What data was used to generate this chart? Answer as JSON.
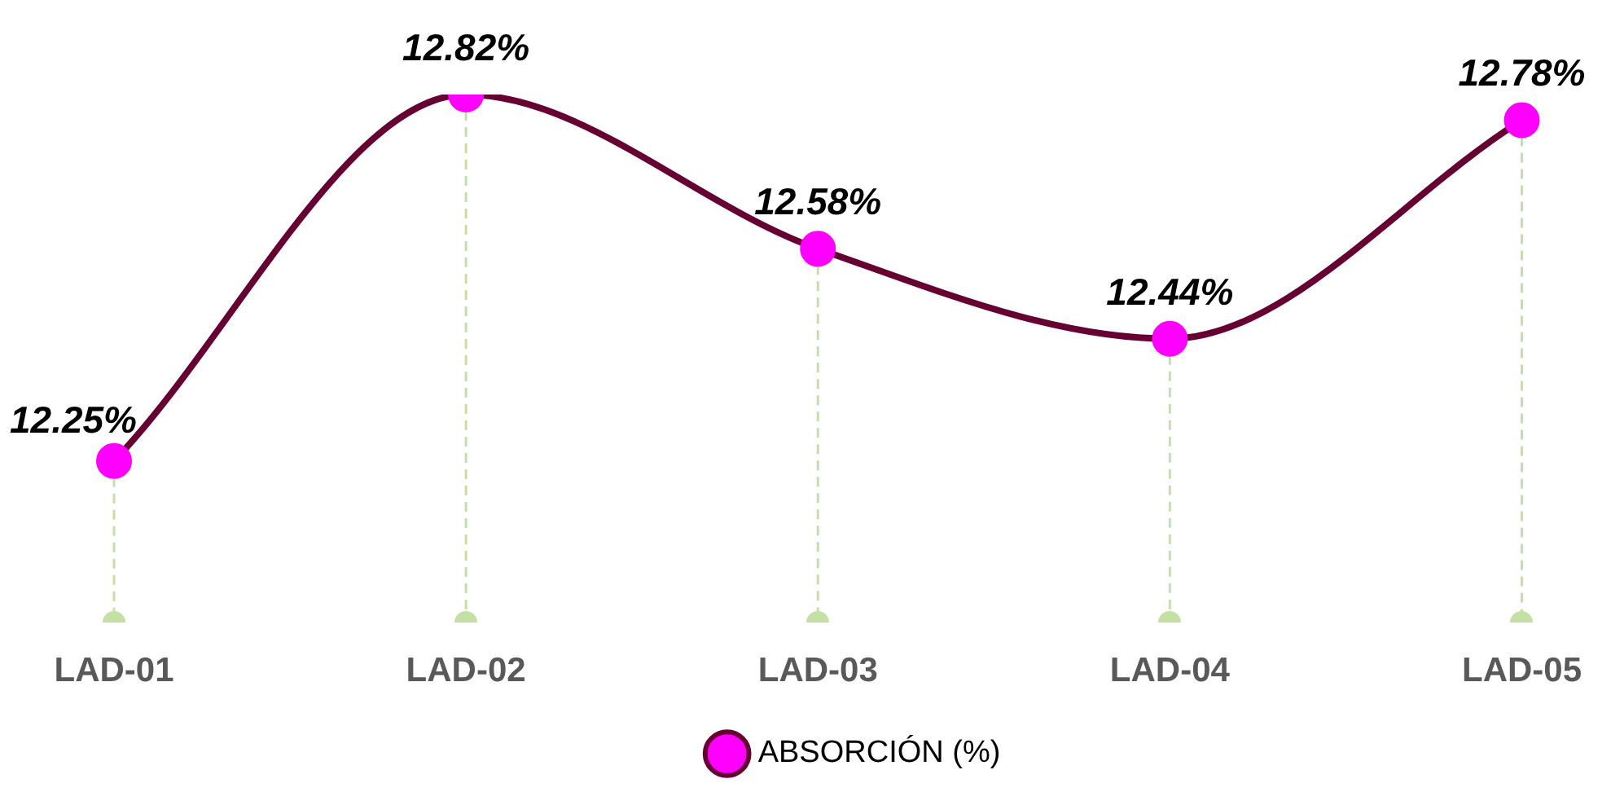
{
  "chart_data": {
    "type": "line",
    "categories": [
      "LAD-01",
      "LAD-02",
      "LAD-03",
      "LAD-04",
      "LAD-05"
    ],
    "series": [
      {
        "name": "ABSORCIÓN (%)",
        "color": "#660033",
        "colors": [
          "#ff00ff",
          "#ff00ff",
          "#ff00ff",
          "#ff00ff",
          "#ff00ff"
        ],
        "values": [
          12.25,
          12.82,
          12.58,
          12.44,
          12.78
        ],
        "value_labels": [
          "12.25%",
          "12.82%",
          "12.58%",
          "12.44%",
          "12.78%"
        ]
      }
    ],
    "marker": "circle",
    "line_style": "solid",
    "legend": "bottom",
    "tick_labels": "x",
    "grid": "x"
  }
}
